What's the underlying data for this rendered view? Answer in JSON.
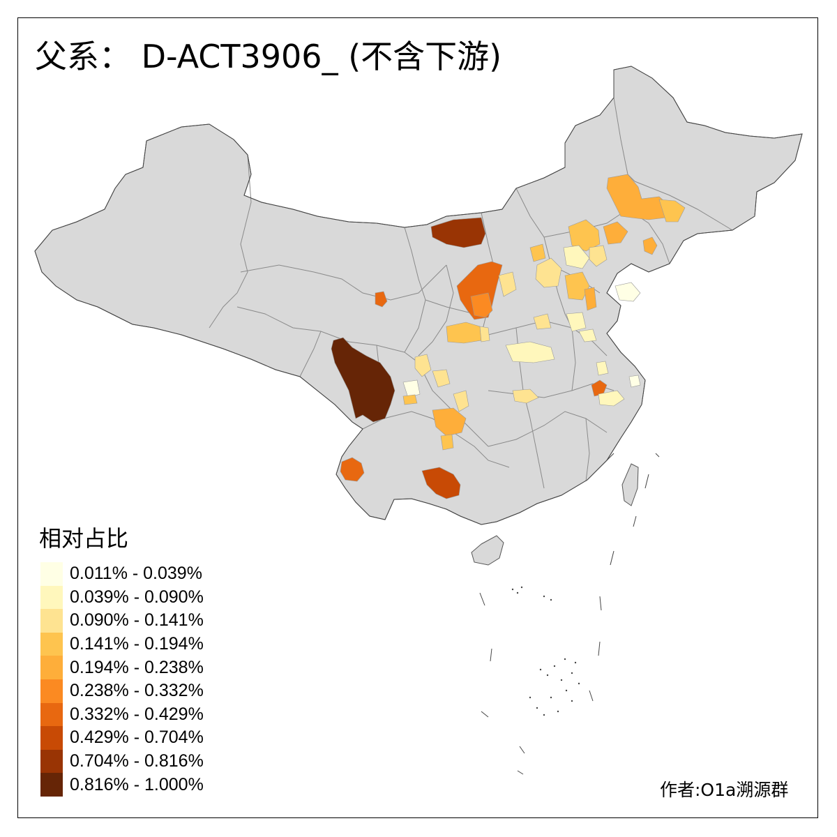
{
  "title": "父系： D-ACT3906_ (不含下游)",
  "legend": {
    "title": "相对占比",
    "items": [
      {
        "label": "0.011% - 0.039%",
        "color": "#FFFFE5"
      },
      {
        "label": "0.039% - 0.090%",
        "color": "#FFF7BC"
      },
      {
        "label": "0.090% - 0.141%",
        "color": "#FEE391"
      },
      {
        "label": "0.141% - 0.194%",
        "color": "#FEC44F"
      },
      {
        "label": "0.194% - 0.238%",
        "color": "#FEAE3A"
      },
      {
        "label": "0.238% - 0.332%",
        "color": "#FB8A22"
      },
      {
        "label": "0.332% - 0.429%",
        "color": "#E86810"
      },
      {
        "label": "0.429% - 0.704%",
        "color": "#C84A05"
      },
      {
        "label": "0.704% - 0.816%",
        "color": "#993404"
      },
      {
        "label": "0.816% - 1.000%",
        "color": "#662506"
      }
    ]
  },
  "author": "作者:O1a溯源群",
  "colors": {
    "land": "#D9D9D9",
    "border": "#8A8A8A",
    "outline": "#333333"
  }
}
